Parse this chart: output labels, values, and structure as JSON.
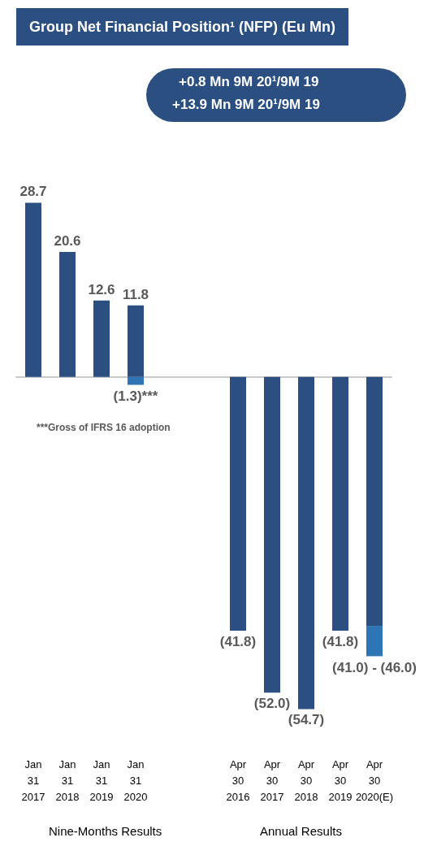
{
  "chart_data": {
    "type": "bar",
    "title": "Group Net Financial Position¹ (NFP) (Eu Mn)",
    "categories": [
      "Jan 31 2017",
      "Jan 31 2018",
      "Jan 31 2019",
      "Jan 31 2020",
      null,
      null,
      "Apr 30 2016",
      "Apr 30 2017",
      "Apr 30 2018",
      "Apr 30 2019",
      "Apr 30 2020(E)"
    ],
    "stacked": true,
    "series": [
      {
        "color": "#2b4f80",
        "values": [
          28.7,
          20.6,
          12.6,
          11.8,
          null,
          null,
          -41.8,
          -52.0,
          -54.7,
          -41.8,
          -41.0
        ],
        "value_labels": [
          "28.7",
          "20.6",
          "12.6",
          "11.8",
          null,
          null,
          "(41.8)",
          "(52.0)",
          "(54.7)",
          "(41.8)",
          "(41.0) - (46.0)"
        ]
      },
      {
        "color": "#2e75b6",
        "values": [
          null,
          null,
          null,
          -1.3,
          null,
          null,
          null,
          null,
          null,
          null,
          -5.0
        ],
        "value_labels": [
          null,
          null,
          null,
          "(1.3)***",
          null,
          null,
          null,
          null,
          null,
          null,
          null
        ]
      }
    ],
    "annotations": [
      "+0.8 Mn 9M 20¹/9M 19",
      "+13.9 Mn 9M 20¹/9M 19",
      "***Gross of IFRS 16 adoption",
      "Nine-Months Results",
      "Annual Results"
    ]
  }
}
